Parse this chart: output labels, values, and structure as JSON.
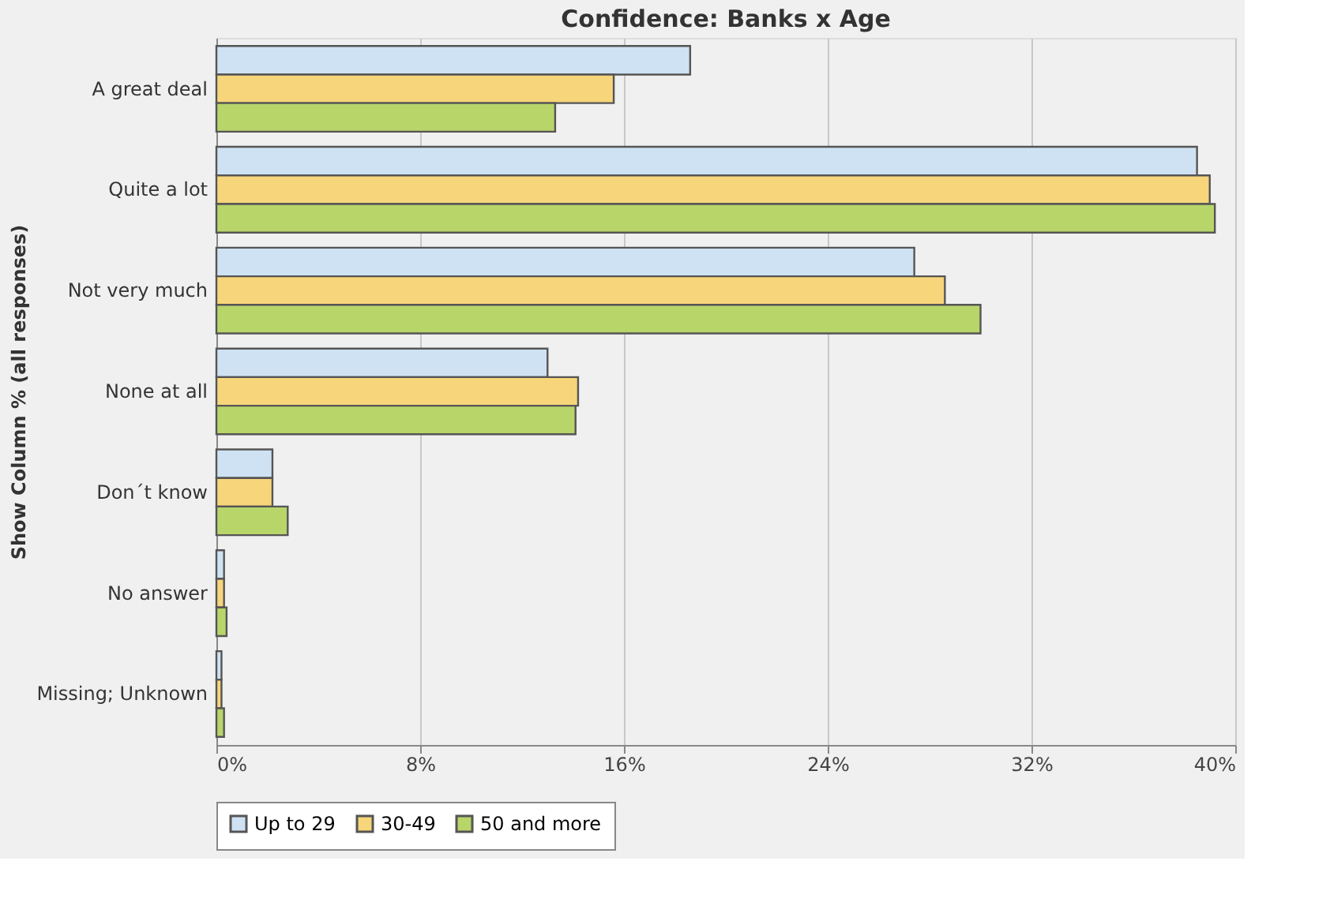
{
  "chart_data": {
    "type": "bar",
    "orientation": "horizontal",
    "title": "Confidence: Banks x Age",
    "ylabel": "Show Column % (all responses)",
    "categories": [
      "A great deal",
      "Quite a lot",
      "Not very much",
      "None at all",
      "Don´t know",
      "No answer",
      "Missing; Unknown"
    ],
    "series": [
      {
        "name": "Up to 29",
        "color": "#cfe2f3",
        "values": [
          18.6,
          38.5,
          27.4,
          13.0,
          2.2,
          0.3,
          0.2
        ]
      },
      {
        "name": "30-49",
        "color": "#f7d57a",
        "values": [
          15.6,
          39.0,
          28.6,
          14.2,
          2.2,
          0.3,
          0.2
        ]
      },
      {
        "name": "50 and more",
        "color": "#b8d56a",
        "values": [
          13.3,
          39.2,
          30.0,
          14.1,
          2.8,
          0.4,
          0.3
        ]
      }
    ],
    "xlim": [
      0,
      40
    ],
    "xticks": [
      {
        "value": 0,
        "label": "0%"
      },
      {
        "value": 8,
        "label": "8%"
      },
      {
        "value": 16,
        "label": "16%"
      },
      {
        "value": 24,
        "label": "24%"
      },
      {
        "value": 32,
        "label": "32%"
      },
      {
        "value": 40,
        "label": "40%"
      }
    ],
    "grid": "x",
    "legend": "bottom"
  }
}
